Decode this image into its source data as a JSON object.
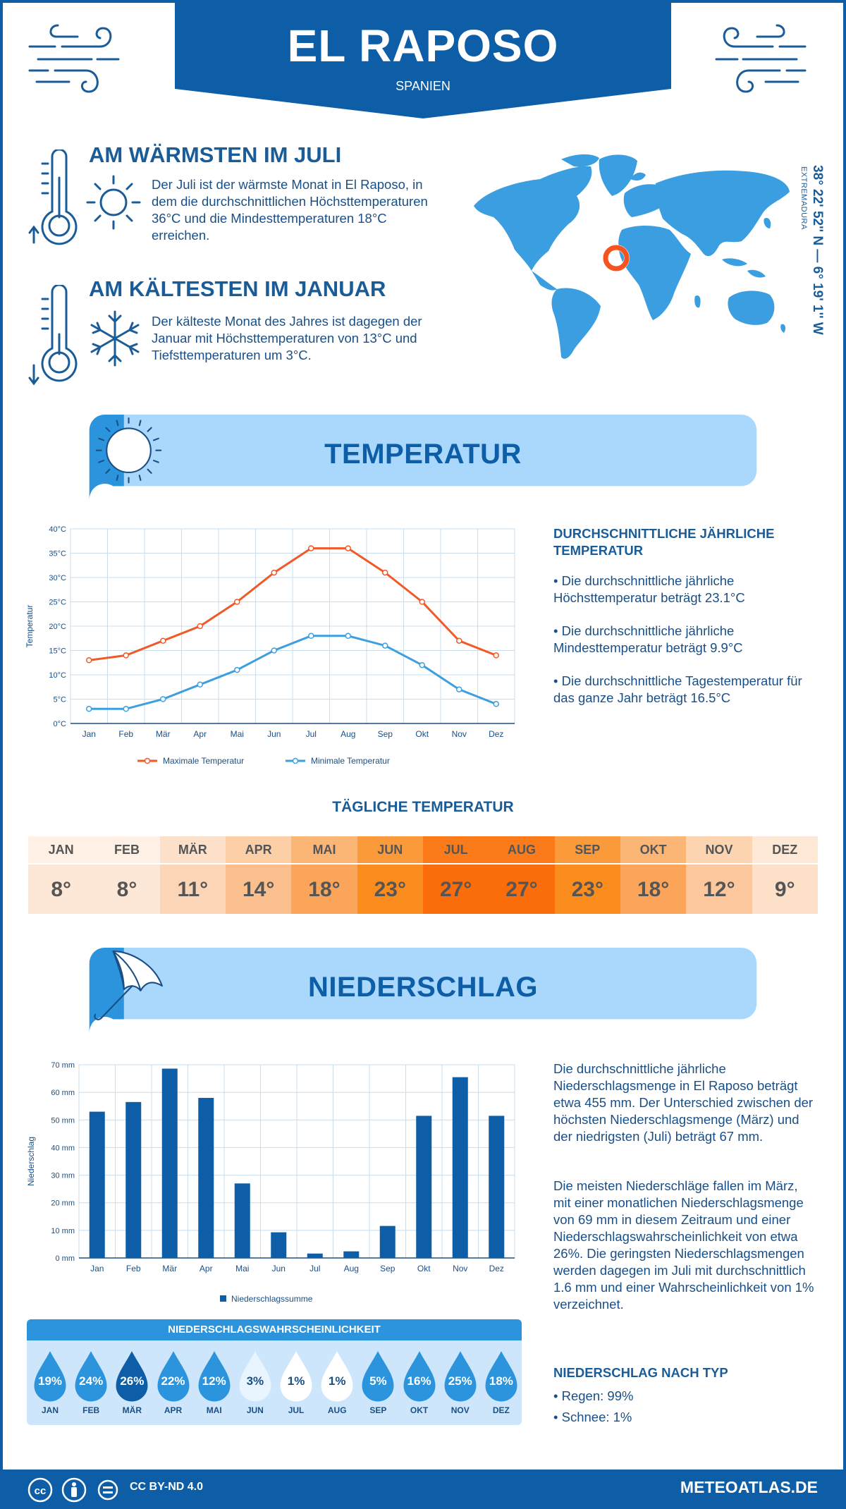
{
  "header": {
    "city": "EL RAPOSO",
    "country": "SPANIEN"
  },
  "facts": {
    "warm": {
      "title": "AM WÄRMSTEN IM JULI",
      "text": "Der Juli ist der wärmste Monat in El Raposo, in dem die durchschnittlichen Höchsttemperaturen 36°C und die Mindesttemperaturen 18°C erreichen."
    },
    "cold": {
      "title": "AM KÄLTESTEN IM JANUAR",
      "text": "Der kälteste Monat des Jahres ist dagegen der Januar mit Höchsttemperaturen von 13°C und Tiefsttemperaturen um 3°C."
    }
  },
  "location": {
    "coords": "38° 22' 52'' N — 6° 19' 1'' W",
    "region": "EXTREMADURA"
  },
  "temperature_section": {
    "title": "TEMPERATUR",
    "side_heading": "DURCHSCHNITTLICHE JÄHRLICHE TEMPERATUR",
    "bullets": [
      "• Die durchschnittliche jährliche Höchsttemperatur beträgt 23.1°C",
      "• Die durchschnittliche jährliche Mindesttemperatur beträgt 9.9°C",
      "• Die durchschnittliche Tagestemperatur für das ganze Jahr beträgt 16.5°C"
    ]
  },
  "daily": {
    "title": "TÄGLICHE TEMPERATUR",
    "months": [
      "JAN",
      "FEB",
      "MÄR",
      "APR",
      "MAI",
      "JUN",
      "JUL",
      "AUG",
      "SEP",
      "OKT",
      "NOV",
      "DEZ"
    ],
    "values": [
      "8°",
      "8°",
      "11°",
      "14°",
      "18°",
      "23°",
      "27°",
      "27°",
      "23°",
      "18°",
      "12°",
      "9°"
    ],
    "colors": [
      "#fde7d6",
      "#fde7d6",
      "#fcd4b6",
      "#fbbf8e",
      "#fba55a",
      "#fb8c1e",
      "#fb6d0a",
      "#fb6d0a",
      "#fb8c1e",
      "#fba55a",
      "#fcc79c",
      "#fde0c8"
    ],
    "header_colors": [
      "#fef0e4",
      "#fef0e4",
      "#fde0c9",
      "#fccfa6",
      "#fbb575",
      "#fb9a3a",
      "#fb7b1a",
      "#fb7b1a",
      "#fb9a3a",
      "#fbb575",
      "#fdd4b0",
      "#fee8d6"
    ]
  },
  "precip_section": {
    "title": "NIEDERSCHLAG",
    "para1": "Die durchschnittliche jährliche Niederschlagsmenge in El Raposo beträgt etwa 455 mm. Der Unterschied zwischen der höchsten Niederschlagsmenge (März) und der niedrigsten (Juli) beträgt 67 mm.",
    "para2": "Die meisten Niederschläge fallen im März, mit einer monatlichen Niederschlagsmenge von 69 mm in diesem Zeitraum und einer Niederschlagswahrscheinlichkeit von etwa 26%. Die geringsten Niederschlagsmengen werden dagegen im Juli mit durchschnittlich 1.6 mm und einer Wahrscheinlichkeit von 1% verzeichnet.",
    "type_heading": "NIEDERSCHLAG NACH TYP",
    "types": [
      "• Regen: 99%",
      "• Schnee: 1%"
    ]
  },
  "probability": {
    "title": "NIEDERSCHLAGSWAHRSCHEINLICHKEIT",
    "months": [
      "JAN",
      "FEB",
      "MÄR",
      "APR",
      "MAI",
      "JUN",
      "JUL",
      "AUG",
      "SEP",
      "OKT",
      "NOV",
      "DEZ"
    ],
    "values": [
      "19%",
      "24%",
      "26%",
      "22%",
      "12%",
      "3%",
      "1%",
      "1%",
      "5%",
      "16%",
      "25%",
      "18%"
    ],
    "colors": [
      "#2b94dc",
      "#2b94dc",
      "#0d5ea6",
      "#2b94dc",
      "#2b94dc",
      "#e8f4fe",
      "#ffffff",
      "#ffffff",
      "#2b94dc",
      "#2b94dc",
      "#2b94dc",
      "#2b94dc"
    ],
    "text_colors": [
      "#ffffff",
      "#ffffff",
      "#ffffff",
      "#ffffff",
      "#ffffff",
      "#1a4f86",
      "#1a4f86",
      "#1a4f86",
      "#ffffff",
      "#ffffff",
      "#ffffff",
      "#ffffff"
    ]
  },
  "footer": {
    "license": "CC BY-ND 4.0",
    "site": "METEOATLAS.DE"
  },
  "chart_data": [
    {
      "type": "line",
      "categories": [
        "Jan",
        "Feb",
        "Mär",
        "Apr",
        "Mai",
        "Jun",
        "Jul",
        "Aug",
        "Sep",
        "Okt",
        "Nov",
        "Dez"
      ],
      "series": [
        {
          "name": "Maximale Temperatur",
          "color": "#f05a28",
          "values": [
            13,
            14,
            17,
            20,
            25,
            31,
            36,
            36,
            31,
            25,
            17,
            14
          ]
        },
        {
          "name": "Minimale Temperatur",
          "color": "#3d9ee0",
          "values": [
            3,
            3,
            5,
            8,
            11,
            15,
            18,
            18,
            16,
            12,
            7,
            4
          ]
        }
      ],
      "ylabel": "Temperatur",
      "ylim": [
        0,
        40
      ],
      "yticks": [
        "0°C",
        "5°C",
        "10°C",
        "15°C",
        "20°C",
        "25°C",
        "30°C",
        "35°C",
        "40°C"
      ],
      "grid": true,
      "legend": "bottom"
    },
    {
      "type": "bar",
      "categories": [
        "Jan",
        "Feb",
        "Mär",
        "Apr",
        "Mai",
        "Jun",
        "Jul",
        "Aug",
        "Sep",
        "Okt",
        "Nov",
        "Dez"
      ],
      "series": [
        {
          "name": "Niederschlagssumme",
          "color": "#0d5ea6",
          "values": [
            53,
            56.5,
            68.6,
            58,
            27,
            9.3,
            1.6,
            2.4,
            11.6,
            51.5,
            65.5,
            51.5
          ]
        }
      ],
      "ylabel": "Niederschlag",
      "ylim": [
        0,
        70
      ],
      "yticks": [
        "0 mm",
        "10 mm",
        "20 mm",
        "30 mm",
        "40 mm",
        "50 mm",
        "60 mm",
        "70 mm"
      ],
      "grid": true,
      "legend": "bottom"
    }
  ]
}
